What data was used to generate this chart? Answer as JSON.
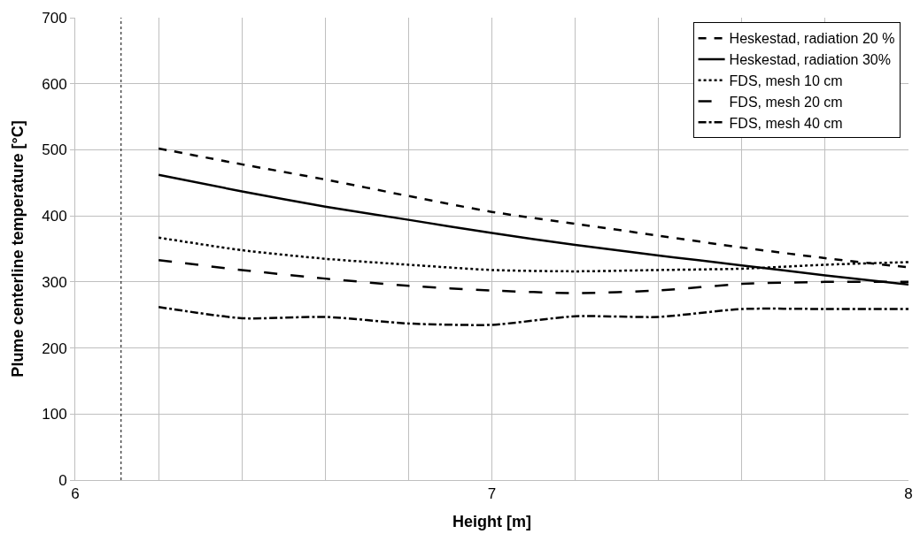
{
  "chart_data": {
    "type": "line",
    "xlabel": "Height [m]",
    "ylabel": "Plume centerline temperature [°C]",
    "xlim": [
      6,
      8
    ],
    "ylim": [
      0,
      700
    ],
    "xticks": [
      6,
      {
        "value": 6.2,
        "label": null
      },
      {
        "value": 6.4,
        "label": null
      },
      {
        "value": 6.6,
        "label": null
      },
      {
        "value": 6.8,
        "label": null
      },
      7,
      {
        "value": 7.2,
        "label": null
      },
      {
        "value": 7.4,
        "label": null
      },
      {
        "value": 7.6,
        "label": null
      },
      {
        "value": 7.8,
        "label": null
      },
      8
    ],
    "yticks": [
      0,
      100,
      200,
      300,
      400,
      500,
      600,
      700
    ],
    "grid": true,
    "legend": "top right",
    "marker": "none",
    "x": [
      6.2,
      6.4,
      6.6,
      6.8,
      7.0,
      7.2,
      7.4,
      7.6,
      7.8,
      8.0
    ],
    "series": [
      {
        "name": "Heskestad, radiation 20 %",
        "color": "#000000",
        "line_style": "dashed",
        "values": [
          502,
          478,
          455,
          430,
          406,
          388,
          370,
          352,
          336,
          322
        ]
      },
      {
        "name": "Heskestad, radiation 30%",
        "color": "#000000",
        "line_style": "solid",
        "values": [
          462,
          437,
          414,
          394,
          374,
          356,
          340,
          325,
          310,
          296
        ]
      },
      {
        "name": "FDS, mesh 10 cm",
        "color": "#000000",
        "line_style": "dotted",
        "values": [
          367,
          348,
          335,
          326,
          318,
          316,
          318,
          320,
          326,
          330
        ]
      },
      {
        "name": "FDS, mesh 20 cm",
        "color": "#000000",
        "line_style": "long dashed",
        "values": [
          333,
          318,
          305,
          294,
          287,
          283,
          287,
          297,
          300,
          300
        ]
      },
      {
        "name": "FDS, mesh 40 cm",
        "color": "#000000",
        "line_style": "dash-dot",
        "values": [
          262,
          245,
          247,
          237,
          235,
          248,
          247,
          259,
          259,
          259
        ]
      }
    ],
    "ref_lines": [
      {
        "axis": "x",
        "value": 6.11,
        "color": "#000000",
        "line_style": "dotted"
      }
    ]
  }
}
